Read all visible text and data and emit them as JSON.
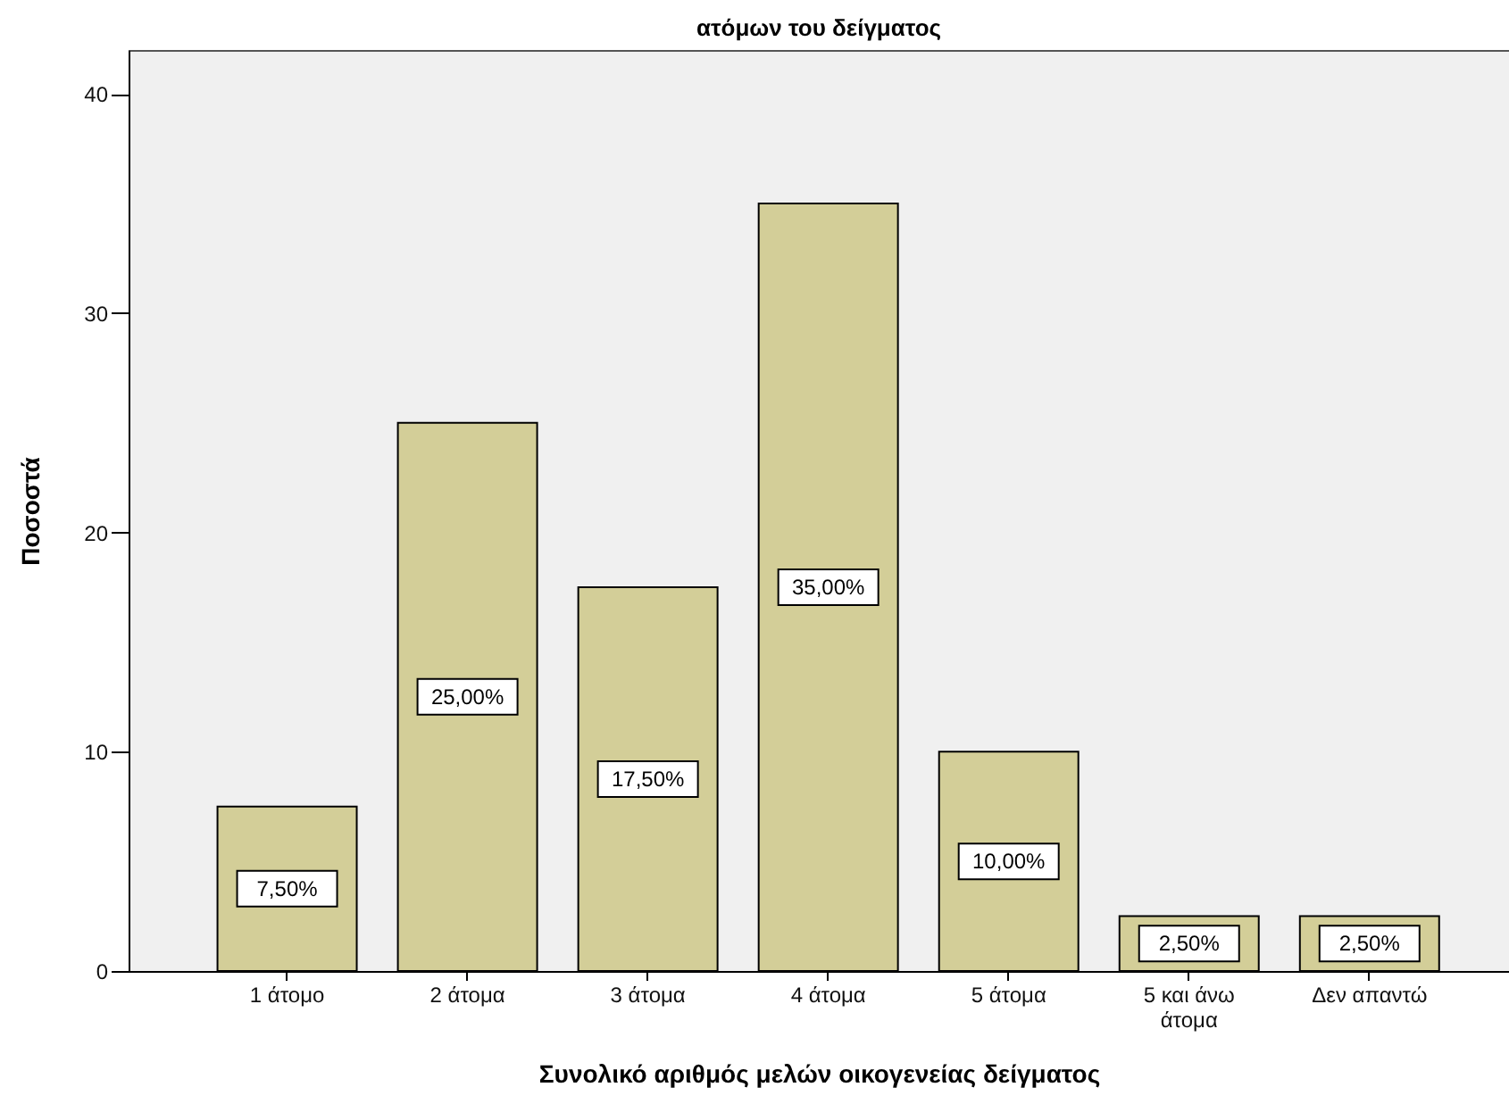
{
  "chart_data": {
    "type": "bar",
    "title": "ατόμων του δείγματος",
    "xlabel": "Συνολικό αριθμός μελών οικογενείας δείγματος",
    "ylabel": "Ποσοστά",
    "categories": [
      "1 άτομο",
      "2 άτομα",
      "3 άτομα",
      "4 άτομα",
      "5 άτομα",
      "5 και άνω άτομα",
      "Δεν απαντώ"
    ],
    "values": [
      7.5,
      25,
      17.5,
      35,
      10,
      2.5,
      2.5
    ],
    "value_labels": [
      "7,50%",
      "25,00%",
      "17,50%",
      "35,00%",
      "10,00%",
      "2,50%",
      "2,50%"
    ],
    "color": "#d3ce98",
    "ylim": [
      0,
      42
    ],
    "yticks": [
      0,
      10,
      20,
      30,
      40
    ]
  }
}
